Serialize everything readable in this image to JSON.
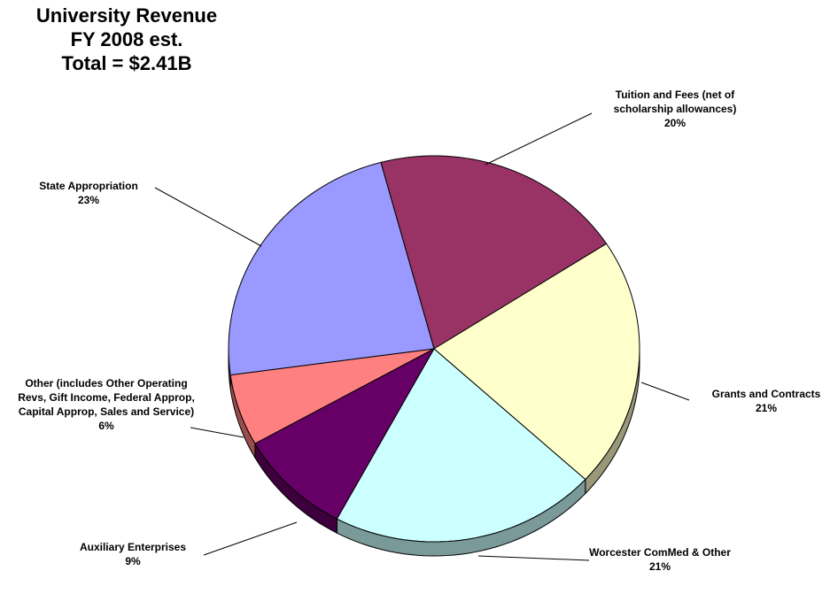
{
  "chart_data": {
    "type": "pie",
    "title": [
      "University Revenue",
      "FY 2008 est.",
      "Total = $2.41B"
    ],
    "categories": [
      "Tuition and Fees (net of scholarship allowances)",
      "Grants and Contracts",
      "Worcester ComMed & Other",
      "Auxiliary Enterprises",
      "Other (includes Other Operating Revs, Gift Income, Federal Approp, Capital Approp, Sales and Service)",
      "State Appropriation"
    ],
    "values": [
      20,
      21,
      21,
      9,
      6,
      23
    ],
    "value_labels": [
      "20%",
      "21%",
      "21%",
      "9%",
      "6%",
      "23%"
    ],
    "colors": [
      "#993366",
      "#ffffcc",
      "#ccffff",
      "#660066",
      "#ff8080",
      "#9999ff"
    ]
  }
}
